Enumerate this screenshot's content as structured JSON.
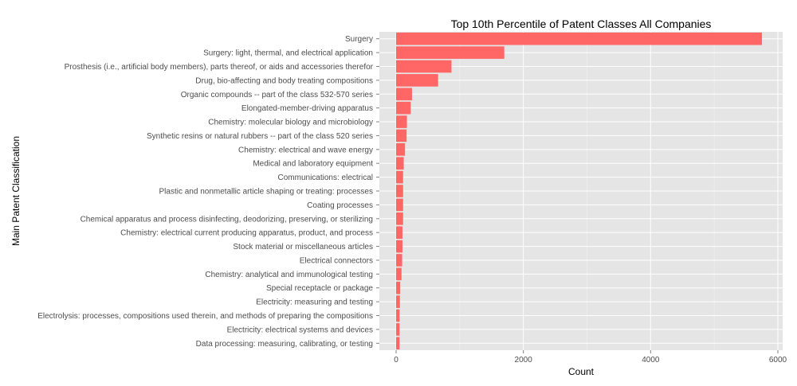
{
  "chart_data": {
    "type": "bar",
    "orientation": "horizontal",
    "title": "Top 10th Percentile of Patent Classes All Companies",
    "xlabel": "Count",
    "ylabel": "Main Patent Classification",
    "xlim": [
      0,
      6000
    ],
    "x_ticks": [
      0,
      2000,
      4000,
      6000
    ],
    "grid": true,
    "bar_color": "#ff6666",
    "panel_color": "#e5e5e5",
    "categories": [
      "Surgery",
      "Surgery: light, thermal, and electrical application",
      "Prosthesis (i.e., artificial body members), parts thereof, or aids and accessories therefor",
      "Drug, bio-affecting and body treating compositions",
      "Organic compounds -- part of the class 532-570 series",
      "Elongated-member-driving apparatus",
      "Chemistry: molecular biology and microbiology",
      "Synthetic resins or natural rubbers -- part of the class 520 series",
      "Chemistry: electrical and wave energy",
      "Medical and laboratory equipment",
      "Communications: electrical",
      "Plastic and nonmetallic article shaping or treating: processes",
      "Coating processes",
      "Chemical apparatus and process disinfecting, deodorizing, preserving, or sterilizing",
      "Chemistry: electrical current producing apparatus, product, and process",
      "Stock material or miscellaneous articles",
      "Electrical connectors",
      "Chemistry: analytical and immunological testing",
      "Special receptacle or package",
      "Electricity: measuring and testing",
      "Electrolysis: processes, compositions used therein, and methods of preparing the compositions",
      "Electricity: electrical systems and devices",
      "Data processing: measuring, calibrating, or testing"
    ],
    "values": [
      5750,
      1700,
      870,
      660,
      250,
      230,
      170,
      165,
      140,
      120,
      110,
      110,
      110,
      110,
      100,
      100,
      95,
      85,
      65,
      60,
      55,
      55,
      55
    ]
  }
}
